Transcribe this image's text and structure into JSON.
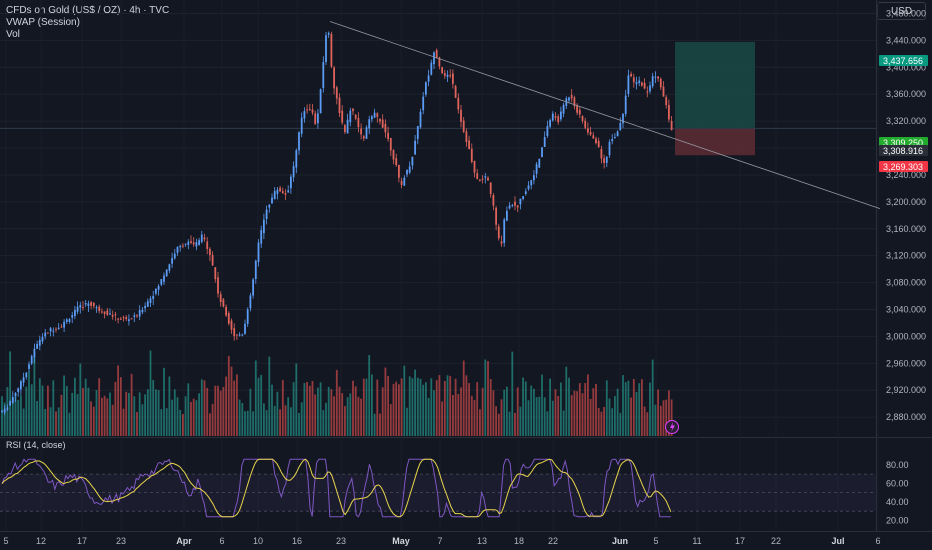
{
  "legend": {
    "symbol": "CFDs on Gold (US$ / OZ) · 4h · TVC",
    "vwap": "VWAP (Session)",
    "vol": "Vol"
  },
  "currency_button": "USD",
  "rsi_label": "RSI (14, close)",
  "colors": {
    "background": "#131722",
    "up": "#5b9cf6",
    "down": "#e0645c",
    "vol_up": "#26a69a",
    "vol_down": "#ef5350",
    "rsi_line": "#7e57c2",
    "rsi_ma": "#e8d44d",
    "target_zone": "#1a4a44",
    "stop_zone": "#5a2a33"
  },
  "price_badges": [
    {
      "label": "3,437.656",
      "color": "#089981"
    },
    {
      "label": "3,309.250",
      "color": "#22ab2c"
    },
    {
      "label": "3,308.916",
      "color": "#2a2e39"
    },
    {
      "label": "3,269.303",
      "color": "#f23645"
    }
  ],
  "chart_data": {
    "type": "candlestick",
    "y_ticks": [
      "3,480.000",
      "3,440.000",
      "3,400.000",
      "3,360.000",
      "3,320.000",
      "3,280.000",
      "3,240.000",
      "3,200.000",
      "3,160.000",
      "3,120.000",
      "3,080.000",
      "3,040.000",
      "3,000.000",
      "2,960.000",
      "2,920.000",
      "2,880.000"
    ],
    "y_tick_values": [
      3480,
      3440,
      3400,
      3360,
      3320,
      3280,
      3240,
      3200,
      3160,
      3120,
      3080,
      3040,
      3000,
      2960,
      2920,
      2880
    ],
    "ylim": [
      2852,
      3500
    ],
    "x_ticks": [
      {
        "label": "5",
        "bold": false
      },
      {
        "label": "12",
        "bold": false
      },
      {
        "label": "17",
        "bold": false
      },
      {
        "label": "23",
        "bold": false
      },
      {
        "label": "Apr",
        "bold": true
      },
      {
        "label": "6",
        "bold": false
      },
      {
        "label": "10",
        "bold": false
      },
      {
        "label": "16",
        "bold": false
      },
      {
        "label": "23",
        "bold": false
      },
      {
        "label": "May",
        "bold": true
      },
      {
        "label": "7",
        "bold": false
      },
      {
        "label": "13",
        "bold": false
      },
      {
        "label": "18",
        "bold": false
      },
      {
        "label": "22",
        "bold": false
      },
      {
        "label": "Jun",
        "bold": true
      },
      {
        "label": "5",
        "bold": false
      },
      {
        "label": "11",
        "bold": false
      },
      {
        "label": "17",
        "bold": false
      },
      {
        "label": "22",
        "bold": false
      },
      {
        "label": "Jul",
        "bold": true
      },
      {
        "label": "6",
        "bold": false
      }
    ],
    "price_keypoints": [
      [
        0,
        2888
      ],
      [
        6,
        2890
      ],
      [
        14,
        2910
      ],
      [
        22,
        2930
      ],
      [
        28,
        2950
      ],
      [
        34,
        2975
      ],
      [
        42,
        2998
      ],
      [
        52,
        3010
      ],
      [
        62,
        3015
      ],
      [
        72,
        3030
      ],
      [
        80,
        3043
      ],
      [
        90,
        3050
      ],
      [
        100,
        3040
      ],
      [
        108,
        3035
      ],
      [
        118,
        3028
      ],
      [
        128,
        3025
      ],
      [
        138,
        3030
      ],
      [
        148,
        3050
      ],
      [
        158,
        3070
      ],
      [
        168,
        3100
      ],
      [
        178,
        3130
      ],
      [
        188,
        3140
      ],
      [
        196,
        3135
      ],
      [
        204,
        3150
      ],
      [
        212,
        3120
      ],
      [
        220,
        3060
      ],
      [
        228,
        3030
      ],
      [
        236,
        3000
      ],
      [
        244,
        3005
      ],
      [
        252,
        3060
      ],
      [
        260,
        3140
      ],
      [
        268,
        3190
      ],
      [
        278,
        3220
      ],
      [
        288,
        3210
      ],
      [
        296,
        3260
      ],
      [
        304,
        3335
      ],
      [
        312,
        3340
      ],
      [
        318,
        3310
      ],
      [
        324,
        3400
      ],
      [
        329,
        3470
      ],
      [
        334,
        3380
      ],
      [
        340,
        3340
      ],
      [
        346,
        3300
      ],
      [
        352,
        3340
      ],
      [
        358,
        3320
      ],
      [
        364,
        3290
      ],
      [
        370,
        3320
      ],
      [
        376,
        3330
      ],
      [
        382,
        3320
      ],
      [
        388,
        3300
      ],
      [
        394,
        3270
      ],
      [
        398,
        3250
      ],
      [
        402,
        3220
      ],
      [
        406,
        3240
      ],
      [
        410,
        3250
      ],
      [
        414,
        3270
      ],
      [
        420,
        3320
      ],
      [
        426,
        3370
      ],
      [
        432,
        3400
      ],
      [
        436,
        3430
      ],
      [
        440,
        3405
      ],
      [
        446,
        3385
      ],
      [
        452,
        3390
      ],
      [
        458,
        3350
      ],
      [
        464,
        3310
      ],
      [
        470,
        3280
      ],
      [
        476,
        3240
      ],
      [
        482,
        3230
      ],
      [
        488,
        3240
      ],
      [
        494,
        3200
      ],
      [
        498,
        3160
      ],
      [
        502,
        3130
      ],
      [
        506,
        3180
      ],
      [
        512,
        3200
      ],
      [
        518,
        3190
      ],
      [
        524,
        3210
      ],
      [
        530,
        3225
      ],
      [
        536,
        3245
      ],
      [
        542,
        3270
      ],
      [
        548,
        3310
      ],
      [
        554,
        3330
      ],
      [
        560,
        3320
      ],
      [
        566,
        3350
      ],
      [
        572,
        3360
      ],
      [
        578,
        3335
      ],
      [
        584,
        3320
      ],
      [
        590,
        3300
      ],
      [
        596,
        3295
      ],
      [
        602,
        3270
      ],
      [
        606,
        3255
      ],
      [
        612,
        3295
      ],
      [
        618,
        3300
      ],
      [
        624,
        3330
      ],
      [
        630,
        3390
      ],
      [
        636,
        3375
      ],
      [
        642,
        3380
      ],
      [
        648,
        3360
      ],
      [
        654,
        3385
      ],
      [
        658,
        3390
      ],
      [
        662,
        3370
      ],
      [
        668,
        3340
      ],
      [
        672,
        3309
      ]
    ],
    "trendline": {
      "from": [
        330,
        3468
      ],
      "to": [
        880,
        3190
      ]
    },
    "rsi_ticks": [
      "80.00",
      "60.00",
      "40.00",
      "20.00"
    ],
    "rsi_tick_values": [
      80,
      60,
      40,
      20
    ],
    "rsi_ylim": [
      14,
      96
    ],
    "rsi_band": [
      30,
      70
    ],
    "position_tool": {
      "target": 3437.656,
      "entry": 3309.25,
      "stop": 3269.303
    }
  }
}
